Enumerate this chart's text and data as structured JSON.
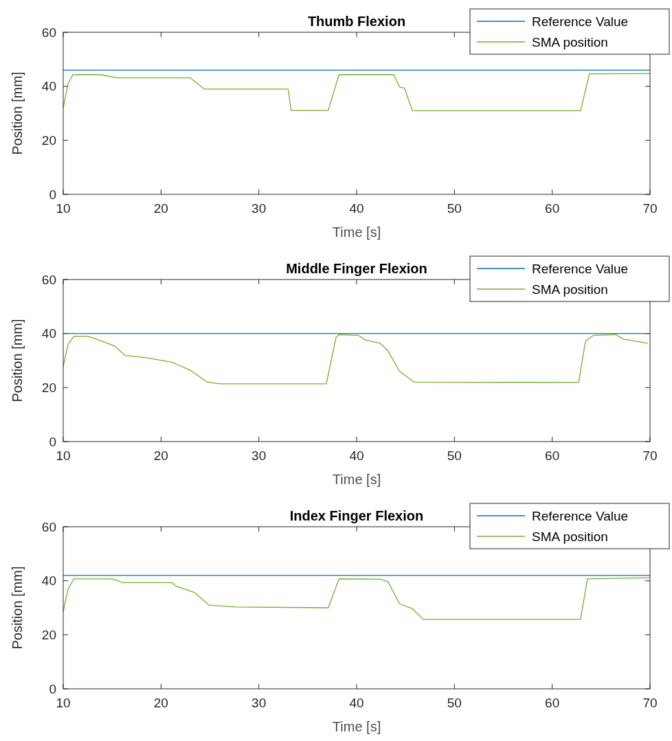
{
  "chart_data": [
    {
      "type": "line",
      "title": "Thumb Flexion",
      "xlabel": "Time [s]",
      "ylabel": "Position [mm]",
      "xlim": [
        10,
        70
      ],
      "ylim": [
        0,
        60
      ],
      "xticks": [
        10,
        20,
        30,
        40,
        50,
        60,
        70
      ],
      "yticks": [
        0,
        20,
        40,
        60
      ],
      "grid": false,
      "legend": "top right",
      "series": [
        {
          "name": "Reference Value",
          "color": "#0072bd",
          "x": [
            10,
            70
          ],
          "values": [
            46,
            46
          ]
        },
        {
          "name": "SMA position",
          "color": "#77ac30",
          "x": [
            10,
            10.5,
            11,
            13.8,
            15.5,
            23,
            24.4,
            33,
            33.3,
            37.1,
            38.2,
            43.8,
            44.4,
            44.9,
            45.7,
            55,
            62.9,
            63.8,
            70
          ],
          "values": [
            32,
            41,
            44.3,
            44.3,
            43.1,
            43.1,
            39,
            39,
            31.1,
            31.1,
            44.3,
            44.3,
            39.7,
            39.3,
            31,
            31,
            31,
            44.6,
            44.7
          ]
        }
      ]
    },
    {
      "type": "line",
      "title": "Middle Finger Flexion",
      "xlabel": "Time [s]",
      "ylabel": "Position [mm]",
      "xlim": [
        10,
        70
      ],
      "ylim": [
        0,
        60
      ],
      "xticks": [
        10,
        20,
        30,
        40,
        50,
        60,
        70
      ],
      "yticks": [
        0,
        20,
        40,
        60
      ],
      "grid": false,
      "legend": "top right",
      "series": [
        {
          "name": "Reference Value",
          "color": "#0072bd",
          "x": [
            10,
            70
          ],
          "values": [
            40,
            40
          ]
        },
        {
          "name": "SMA position",
          "color": "#77ac30",
          "x": [
            10,
            10.5,
            11.1,
            12.5,
            13.4,
            15.3,
            16.3,
            18.4,
            21.1,
            23,
            24.7,
            26,
            36.9,
            37.9,
            38.2,
            40.2,
            40.9,
            42.4,
            43.2,
            44.4,
            45.9,
            62.7,
            63.4,
            64.2,
            66.5,
            67.3,
            69.8
          ],
          "values": [
            27.9,
            36,
            39,
            39,
            37.9,
            35.3,
            31.9,
            31.1,
            29.4,
            26.4,
            22.1,
            21.4,
            21.4,
            38.6,
            39.6,
            39.3,
            37.6,
            36.4,
            33.6,
            26,
            22,
            21.9,
            37.1,
            39.3,
            39.6,
            37.9,
            36.4
          ]
        }
      ]
    },
    {
      "type": "line",
      "title": "Index Finger Flexion",
      "xlabel": "Time [s]",
      "ylabel": "Position [mm]",
      "xlim": [
        10,
        70
      ],
      "ylim": [
        0,
        60
      ],
      "xticks": [
        10,
        20,
        30,
        40,
        50,
        60,
        70
      ],
      "yticks": [
        0,
        20,
        40,
        60
      ],
      "grid": false,
      "legend": "top right",
      "series": [
        {
          "name": "Reference Value",
          "color": "#0072bd",
          "x": [
            10,
            70
          ],
          "values": [
            42,
            42
          ]
        },
        {
          "name": "SMA position",
          "color": "#77ac30",
          "x": [
            10,
            10.5,
            11.1,
            15,
            16.1,
            21.1,
            21.6,
            23.4,
            24.9,
            27.6,
            37.1,
            38.2,
            42.4,
            43.2,
            44.4,
            45.7,
            46.8,
            62.9,
            63.6,
            70
          ],
          "values": [
            28.6,
            37,
            40.7,
            40.7,
            39.3,
            39.3,
            37.9,
            35.7,
            31,
            30.3,
            30,
            40.7,
            40.6,
            39.7,
            31.4,
            29.7,
            25.7,
            25.7,
            40.7,
            41.1
          ]
        }
      ]
    }
  ]
}
